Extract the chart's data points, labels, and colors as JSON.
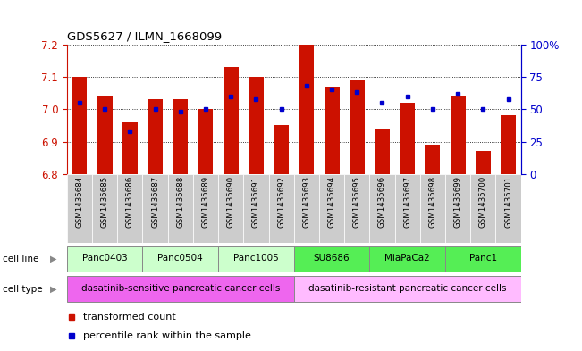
{
  "title": "GDS5627 / ILMN_1668099",
  "samples": [
    "GSM1435684",
    "GSM1435685",
    "GSM1435686",
    "GSM1435687",
    "GSM1435688",
    "GSM1435689",
    "GSM1435690",
    "GSM1435691",
    "GSM1435692",
    "GSM1435693",
    "GSM1435694",
    "GSM1435695",
    "GSM1435696",
    "GSM1435697",
    "GSM1435698",
    "GSM1435699",
    "GSM1435700",
    "GSM1435701"
  ],
  "bar_values": [
    7.1,
    7.04,
    6.96,
    7.03,
    7.03,
    7.0,
    7.13,
    7.1,
    6.95,
    7.2,
    7.07,
    7.09,
    6.94,
    7.02,
    6.89,
    7.04,
    6.87,
    6.98
  ],
  "percentile_values": [
    55,
    50,
    33,
    50,
    48,
    50,
    60,
    58,
    50,
    68,
    65,
    63,
    55,
    60,
    50,
    62,
    50,
    58
  ],
  "ylim": [
    6.8,
    7.2
  ],
  "yticks_left": [
    6.8,
    6.9,
    7.0,
    7.1,
    7.2
  ],
  "yticks_right": [
    0,
    25,
    50,
    75,
    100
  ],
  "ytick_right_labels": [
    "0",
    "25",
    "50",
    "75",
    "100%"
  ],
  "bar_color": "#cc1100",
  "dot_color": "#0000cc",
  "cell_lines": [
    {
      "label": "Panc0403",
      "start": 0,
      "end": 3,
      "color": "#ccffcc"
    },
    {
      "label": "Panc0504",
      "start": 3,
      "end": 6,
      "color": "#ccffcc"
    },
    {
      "label": "Panc1005",
      "start": 6,
      "end": 9,
      "color": "#ccffcc"
    },
    {
      "label": "SU8686",
      "start": 9,
      "end": 12,
      "color": "#55ee55"
    },
    {
      "label": "MiaPaCa2",
      "start": 12,
      "end": 15,
      "color": "#55ee55"
    },
    {
      "label": "Panc1",
      "start": 15,
      "end": 18,
      "color": "#55ee55"
    }
  ],
  "cell_types": [
    {
      "label": "dasatinib-sensitive pancreatic cancer cells",
      "start": 0,
      "end": 9,
      "color": "#ee66ee"
    },
    {
      "label": "dasatinib-resistant pancreatic cancer cells",
      "start": 9,
      "end": 18,
      "color": "#ffbbff"
    }
  ],
  "sample_box_color": "#cccccc",
  "legend_items": [
    {
      "label": "transformed count",
      "color": "#cc1100"
    },
    {
      "label": "percentile rank within the sample",
      "color": "#0000cc"
    }
  ]
}
